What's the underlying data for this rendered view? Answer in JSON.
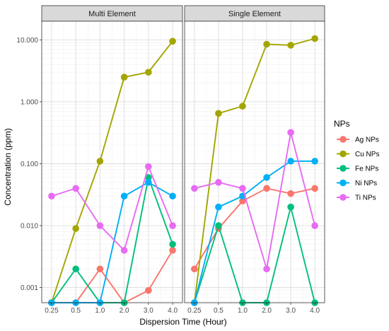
{
  "chart_data": {
    "type": "line",
    "xlabel": "Dispersion Time (Hour)",
    "ylabel": "Concentration (ppm)",
    "y_scale": "log",
    "ylim": [
      0.00057,
      20
    ],
    "y_ticks": [
      {
        "value": 0.001,
        "label": "0.001"
      },
      {
        "value": 0.01,
        "label": "0.010"
      },
      {
        "value": 0.1,
        "label": "0.100"
      },
      {
        "value": 1,
        "label": "1.000"
      },
      {
        "value": 10,
        "label": "10.000"
      }
    ],
    "categories": [
      "0.25",
      "0.5",
      "1.0",
      "2.0",
      "3.0",
      "4.0"
    ],
    "grid": true,
    "legend": {
      "title": "NPs",
      "position": "right"
    },
    "panels": [
      {
        "strip": "Multi Element",
        "series": [
          {
            "name": "Ag NPs",
            "color": "#F8766D",
            "values": [
              0.00057,
              0.00057,
              0.002,
              0.00057,
              0.0009,
              0.004
            ]
          },
          {
            "name": "Cu NPs",
            "color": "#A3A500",
            "values": [
              0.00057,
              0.009,
              0.11,
              2.5,
              3.0,
              9.5
            ]
          },
          {
            "name": "Fe NPs",
            "color": "#00BF7D",
            "values": [
              0.00057,
              0.002,
              0.00057,
              0.00057,
              0.06,
              0.005
            ]
          },
          {
            "name": "Ni NPs",
            "color": "#00B0F6",
            "values": [
              0.00057,
              0.00057,
              0.00057,
              0.03,
              0.05,
              0.03
            ]
          },
          {
            "name": "Ti NPs",
            "color": "#E76BF3",
            "values": [
              0.03,
              0.04,
              0.01,
              0.004,
              0.09,
              0.01
            ]
          }
        ]
      },
      {
        "strip": "Single Element",
        "series": [
          {
            "name": "Ag NPs",
            "color": "#F8766D",
            "values": [
              0.002,
              0.009,
              0.025,
              0.04,
              0.033,
              0.04
            ]
          },
          {
            "name": "Cu NPs",
            "color": "#A3A500",
            "values": [
              0.00057,
              0.65,
              0.85,
              8.5,
              8.2,
              10.5
            ]
          },
          {
            "name": "Fe NPs",
            "color": "#00BF7D",
            "values": [
              0.00057,
              0.01,
              0.00057,
              0.00057,
              0.02,
              0.00057
            ]
          },
          {
            "name": "Ni NPs",
            "color": "#00B0F6",
            "values": [
              0.00057,
              0.02,
              0.03,
              0.06,
              0.11,
              0.11
            ]
          },
          {
            "name": "Ti NPs",
            "color": "#E76BF3",
            "values": [
              0.04,
              0.05,
              0.04,
              0.002,
              0.32,
              0.01
            ]
          }
        ]
      }
    ]
  }
}
